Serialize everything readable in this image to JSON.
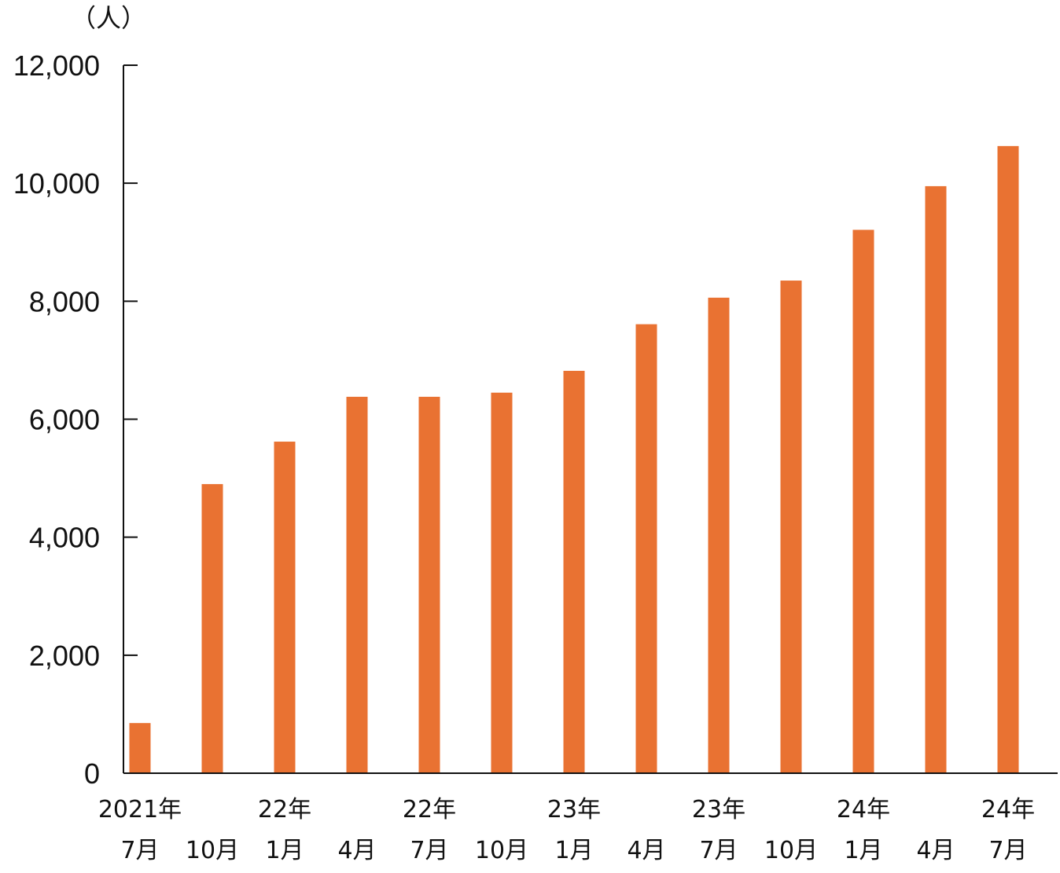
{
  "chart_data": {
    "type": "bar",
    "unit_label": "（人）",
    "ylim": [
      0,
      12000
    ],
    "yticks": [
      0,
      2000,
      4000,
      6000,
      8000,
      10000,
      12000
    ],
    "ytick_labels": [
      "0",
      "2,000",
      "4,000",
      "6,000",
      "8,000",
      "10,000",
      "12,000"
    ],
    "categories": [
      {
        "year": "2021年",
        "month": "7月"
      },
      {
        "year": "",
        "month": "10月"
      },
      {
        "year": "22年",
        "month": "1月"
      },
      {
        "year": "",
        "month": "4月"
      },
      {
        "year": "22年",
        "month": "7月"
      },
      {
        "year": "",
        "month": "10月"
      },
      {
        "year": "23年",
        "month": "1月"
      },
      {
        "year": "",
        "month": "4月"
      },
      {
        "year": "23年",
        "month": "7月"
      },
      {
        "year": "",
        "month": "10月"
      },
      {
        "year": "24年",
        "month": "1月"
      },
      {
        "year": "",
        "month": "4月"
      },
      {
        "year": "24年",
        "month": "7月"
      }
    ],
    "values": [
      850,
      4900,
      5620,
      6380,
      6380,
      6450,
      6820,
      7610,
      8060,
      8350,
      9210,
      9950,
      10630
    ],
    "bar_color": "#E97232",
    "axis_color": "#111111"
  }
}
